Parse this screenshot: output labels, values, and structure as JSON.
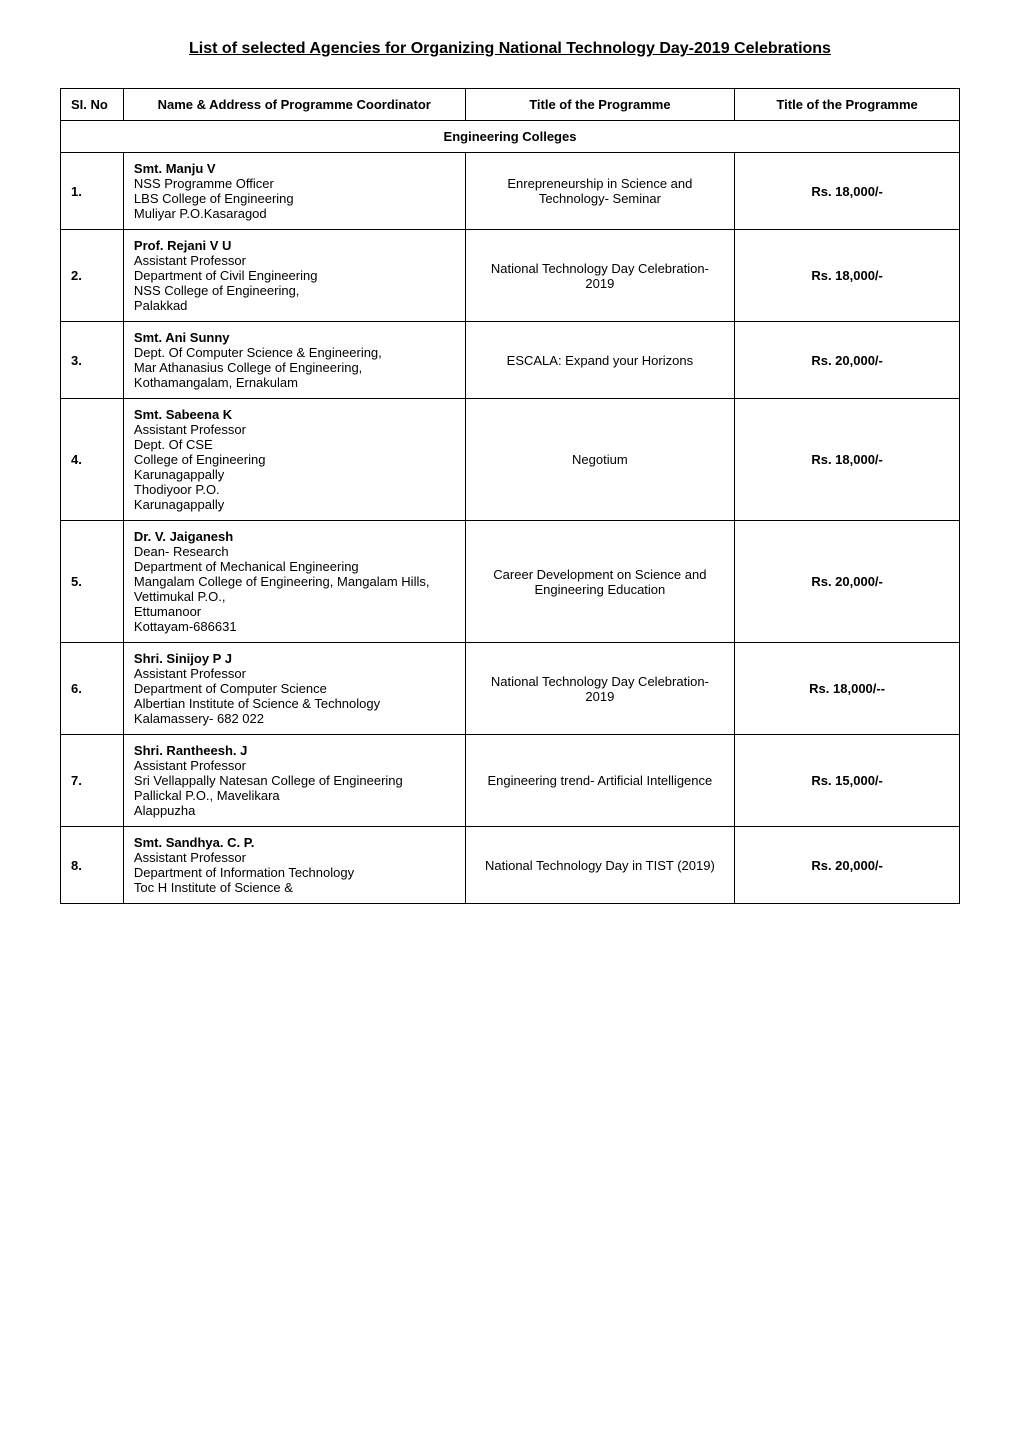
{
  "document": {
    "title": "List of selected Agencies for Organizing National Technology Day-2019 Celebrations"
  },
  "table": {
    "headers": {
      "sl": "SI. No",
      "name": "Name & Address of Programme Coordinator",
      "title": "Title of the Programme",
      "programme": "Title of the Programme"
    },
    "section_header": "Engineering Colleges",
    "rows": [
      {
        "sl": "1.",
        "name_bold": "Smt. Manju V",
        "name_rest": "NSS Programme Officer\nLBS College of Engineering\nMuliyar P.O.Kasaragod",
        "title": "Enrepreneurship in Science and Technology- Seminar",
        "amount": "Rs. 18,000/-"
      },
      {
        "sl": "2.",
        "name_bold": "Prof. Rejani V U",
        "name_rest": "Assistant Professor\nDepartment of Civil Engineering\nNSS College of Engineering,\nPalakkad",
        "title": "National Technology Day Celebration- 2019",
        "amount": "Rs. 18,000/-"
      },
      {
        "sl": "3.",
        "name_bold": "Smt. Ani Sunny",
        "name_rest": "Dept. Of Computer Science & Engineering,\nMar Athanasius College of Engineering,\nKothamangalam, Ernakulam",
        "title": "ESCALA: Expand your Horizons",
        "amount": "Rs. 20,000/-"
      },
      {
        "sl": "4.",
        "name_bold": "Smt. Sabeena K",
        "name_rest": "Assistant Professor\nDept. Of CSE\nCollege of Engineering\nKarunagappally\nThodiyoor P.O.\nKarunagappally",
        "title": "Negotium",
        "amount": "Rs. 18,000/-"
      },
      {
        "sl": "5.",
        "name_bold": "Dr. V. Jaiganesh",
        "name_rest": "Dean- Research\nDepartment of Mechanical Engineering\nMangalam College of Engineering, Mangalam Hills,\nVettimukal P.O.,\nEttumanoor\nKottayam-686631",
        "title": "Career Development on Science and Engineering Education",
        "amount": "Rs. 20,000/-"
      },
      {
        "sl": "6.",
        "name_bold": "Shri. Sinijoy P J",
        "name_rest": "Assistant Professor\nDepartment of Computer Science\nAlbertian Institute of Science & Technology\nKalamassery- 682 022",
        "title": "National Technology Day Celebration- 2019",
        "amount": "Rs. 18,000/--"
      },
      {
        "sl": "7.",
        "name_bold": "Shri. Rantheesh. J",
        "name_rest": "Assistant Professor\nSri Vellappally Natesan College of Engineering\nPallickal P.O., Mavelikara\nAlappuzha",
        "title": "Engineering trend- Artificial Intelligence",
        "amount": "Rs. 15,000/-"
      },
      {
        "sl": "8.",
        "name_bold": "Smt. Sandhya. C. P.",
        "name_rest": "Assistant Professor\nDepartment of Information Technology\nToc H Institute of Science &",
        "title": "National Technology Day in TIST (2019)",
        "amount": "Rs. 20,000/-"
      }
    ]
  }
}
